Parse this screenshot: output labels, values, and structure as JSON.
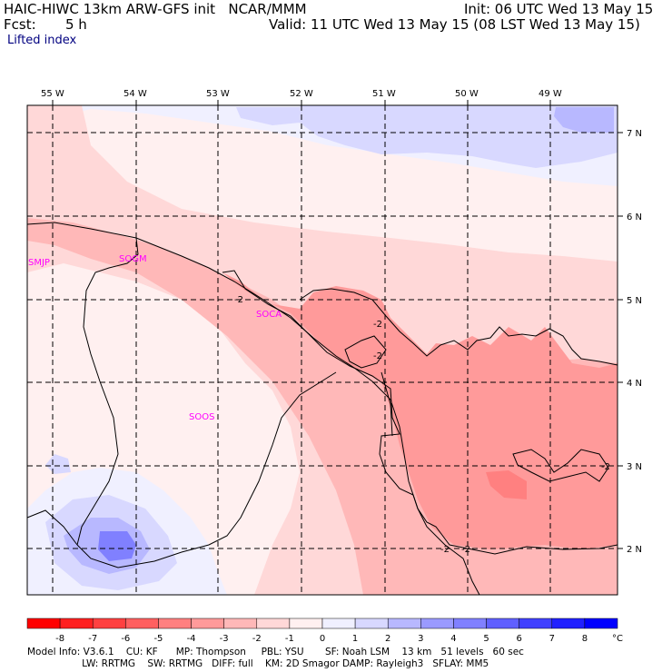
{
  "header": {
    "model": "HAIC-HIWC 13km ARW-GFS init   NCAR/MMM",
    "init": "Init: 06 UTC Wed 13 May 15",
    "fcst_label": "Fcst:",
    "fcst_value": "5 h",
    "valid": "Valid: 11 UTC Wed 13 May 15 (08 LST Wed 13 May 15)",
    "field": "Lifted index"
  },
  "map": {
    "longitude_labels": [
      "55 W",
      "54 W",
      "53 W",
      "52 W",
      "51 W",
      "50 W",
      "49 W"
    ],
    "latitude_labels": [
      "7 N",
      "6 N",
      "5 N",
      "4 N",
      "3 N",
      "2 N"
    ],
    "stations": [
      "SMJP",
      "SOGM",
      "SOCA",
      "SOOS"
    ],
    "contour_labels": [
      "-2",
      "-2",
      "-2",
      "-2",
      "-2",
      "-2"
    ]
  },
  "colorbar": {
    "ticks": [
      "-8",
      "-7",
      "-6",
      "-5",
      "-4",
      "-3",
      "-2",
      "-1",
      "0",
      "1",
      "2",
      "3",
      "4",
      "5",
      "6",
      "7",
      "8"
    ],
    "unit": "°C",
    "colors": [
      "#ff0000",
      "#ff2020",
      "#ff4040",
      "#ff6060",
      "#ff8080",
      "#ff9a9a",
      "#ffb8b8",
      "#ffd8d8",
      "#fff0f0",
      "#f0f0ff",
      "#d8d8ff",
      "#b8b8ff",
      "#9a9aff",
      "#8080ff",
      "#6060ff",
      "#4040ff",
      "#2020ff",
      "#0000ff"
    ]
  },
  "footer": {
    "line1": "Model Info: V3.6.1    CU: KF      MP: Thompson     PBL: YSU       SF: Noah LSM    13 km   51 levels   60 sec",
    "line2": "                  LW: RRTMG    SW: RRTMG   DIFF: full    KM: 2D Smagor DAMP: Rayleigh3   SFLAY: MM5"
  }
}
